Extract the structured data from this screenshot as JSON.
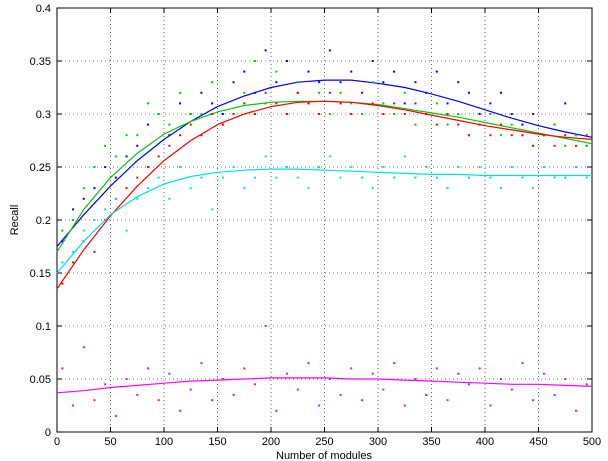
{
  "chart_data": {
    "type": "scatter",
    "title": "",
    "xlabel": "Number of modules",
    "ylabel": "Recall",
    "xlim": [
      0,
      500
    ],
    "ylim": [
      0,
      0.4
    ],
    "xticks": [
      0,
      50,
      100,
      150,
      200,
      250,
      300,
      350,
      400,
      450,
      500
    ],
    "yticks": [
      0,
      0.05,
      0.1,
      0.15,
      0.2,
      0.25,
      0.3,
      0.35,
      0.4
    ],
    "grid": "dotted",
    "legend": "none",
    "series": [
      {
        "color": "#0000ff",
        "fit": {
          "x": [
            0,
            25,
            50,
            75,
            100,
            125,
            150,
            175,
            200,
            225,
            250,
            275,
            300,
            325,
            350,
            375,
            400,
            425,
            450,
            475,
            500
          ],
          "y": [
            0.175,
            0.205,
            0.232,
            0.256,
            0.276,
            0.293,
            0.307,
            0.317,
            0.325,
            0.33,
            0.332,
            0.332,
            0.329,
            0.325,
            0.319,
            0.312,
            0.304,
            0.296,
            0.289,
            0.283,
            0.278
          ]
        },
        "points": {
          "x": [
            5,
            15,
            25,
            35,
            45,
            55,
            65,
            75,
            85,
            95,
            105,
            115,
            125,
            135,
            145,
            155,
            165,
            175,
            185,
            195,
            205,
            215,
            225,
            235,
            245,
            255,
            265,
            275,
            285,
            295,
            305,
            315,
            325,
            335,
            345,
            355,
            365,
            375,
            385,
            395,
            405,
            415,
            425,
            435,
            445,
            455,
            465,
            475,
            485,
            495
          ],
          "y": [
            0.18,
            0.21,
            0.22,
            0.23,
            0.25,
            0.24,
            0.26,
            0.27,
            0.29,
            0.3,
            0.28,
            0.31,
            0.3,
            0.32,
            0.31,
            0.3,
            0.33,
            0.34,
            0.32,
            0.36,
            0.33,
            0.35,
            0.32,
            0.34,
            0.33,
            0.36,
            0.33,
            0.34,
            0.32,
            0.35,
            0.33,
            0.34,
            0.31,
            0.33,
            0.32,
            0.34,
            0.31,
            0.33,
            0.32,
            0.3,
            0.31,
            0.32,
            0.3,
            0.29,
            0.3,
            0.28,
            0.29,
            0.31,
            0.28,
            0.27
          ]
        }
      },
      {
        "color": "#00cc00",
        "fit": {
          "x": [
            0,
            25,
            50,
            75,
            100,
            125,
            150,
            175,
            200,
            225,
            250,
            275,
            300,
            325,
            350,
            375,
            400,
            425,
            450,
            475,
            500
          ],
          "y": [
            0.17,
            0.21,
            0.24,
            0.263,
            0.281,
            0.293,
            0.302,
            0.308,
            0.311,
            0.312,
            0.312,
            0.311,
            0.309,
            0.305,
            0.301,
            0.297,
            0.292,
            0.287,
            0.282,
            0.277,
            0.272
          ]
        },
        "points": {
          "x": [
            5,
            15,
            25,
            35,
            45,
            55,
            65,
            75,
            85,
            95,
            105,
            115,
            125,
            135,
            145,
            155,
            165,
            175,
            185,
            195,
            205,
            215,
            225,
            235,
            245,
            255,
            265,
            275,
            285,
            295,
            305,
            315,
            325,
            335,
            345,
            355,
            365,
            375,
            385,
            395,
            405,
            415,
            425,
            435,
            445,
            455,
            465,
            475,
            485,
            495
          ],
          "y": [
            0.19,
            0.2,
            0.23,
            0.25,
            0.27,
            0.26,
            0.28,
            0.28,
            0.31,
            0.3,
            0.29,
            0.32,
            0.3,
            0.3,
            0.33,
            0.29,
            0.3,
            0.32,
            0.35,
            0.31,
            0.34,
            0.3,
            0.33,
            0.31,
            0.32,
            0.3,
            0.32,
            0.31,
            0.3,
            0.33,
            0.31,
            0.3,
            0.32,
            0.29,
            0.3,
            0.31,
            0.29,
            0.3,
            0.28,
            0.29,
            0.3,
            0.28,
            0.29,
            0.28,
            0.27,
            0.28,
            0.29,
            0.27,
            0.28,
            0.27
          ]
        }
      },
      {
        "color": "#ff0000",
        "fit": {
          "x": [
            0,
            25,
            50,
            75,
            100,
            125,
            150,
            175,
            200,
            225,
            250,
            275,
            300,
            325,
            350,
            375,
            400,
            425,
            450,
            475,
            500
          ],
          "y": [
            0.135,
            0.172,
            0.204,
            0.232,
            0.256,
            0.275,
            0.29,
            0.3,
            0.307,
            0.311,
            0.312,
            0.311,
            0.308,
            0.304,
            0.299,
            0.294,
            0.289,
            0.285,
            0.281,
            0.278,
            0.276
          ]
        },
        "points": {
          "x": [
            5,
            15,
            25,
            35,
            45,
            55,
            65,
            75,
            85,
            95,
            105,
            115,
            125,
            135,
            145,
            155,
            165,
            175,
            185,
            195,
            205,
            215,
            225,
            235,
            245,
            255,
            265,
            275,
            285,
            295,
            305,
            315,
            325,
            335,
            345,
            355,
            365,
            375,
            385,
            395,
            405,
            415,
            425,
            435,
            445,
            455,
            465,
            475,
            485,
            495
          ],
          "y": [
            0.14,
            0.16,
            0.18,
            0.17,
            0.2,
            0.22,
            0.23,
            0.24,
            0.25,
            0.26,
            0.27,
            0.28,
            0.29,
            0.28,
            0.3,
            0.29,
            0.3,
            0.31,
            0.3,
            0.32,
            0.31,
            0.3,
            0.32,
            0.31,
            0.3,
            0.32,
            0.31,
            0.3,
            0.32,
            0.31,
            0.3,
            0.31,
            0.3,
            0.31,
            0.3,
            0.29,
            0.3,
            0.29,
            0.28,
            0.29,
            0.28,
            0.29,
            0.28,
            0.28,
            0.27,
            0.28,
            0.27,
            0.28,
            0.27,
            0.28
          ]
        }
      },
      {
        "color": "#00e0e0",
        "fit": {
          "x": [
            0,
            25,
            50,
            75,
            100,
            125,
            150,
            175,
            200,
            225,
            250,
            275,
            300,
            325,
            350,
            375,
            400,
            425,
            450,
            475,
            500
          ],
          "y": [
            0.15,
            0.18,
            0.205,
            0.222,
            0.234,
            0.241,
            0.245,
            0.247,
            0.248,
            0.248,
            0.247,
            0.246,
            0.245,
            0.244,
            0.243,
            0.243,
            0.242,
            0.242,
            0.242,
            0.242,
            0.242
          ]
        },
        "points": {
          "x": [
            5,
            15,
            25,
            35,
            45,
            55,
            65,
            75,
            85,
            95,
            105,
            115,
            125,
            135,
            145,
            155,
            165,
            175,
            185,
            195,
            205,
            215,
            225,
            235,
            245,
            255,
            265,
            275,
            285,
            295,
            305,
            315,
            325,
            335,
            345,
            355,
            365,
            375,
            385,
            395,
            405,
            415,
            425,
            435,
            445,
            455,
            465,
            475,
            485,
            495
          ],
          "y": [
            0.16,
            0.17,
            0.19,
            0.2,
            0.21,
            0.22,
            0.19,
            0.22,
            0.23,
            0.24,
            0.22,
            0.25,
            0.23,
            0.24,
            0.21,
            0.24,
            0.25,
            0.23,
            0.24,
            0.26,
            0.24,
            0.25,
            0.24,
            0.23,
            0.25,
            0.26,
            0.24,
            0.25,
            0.24,
            0.23,
            0.25,
            0.24,
            0.26,
            0.24,
            0.25,
            0.24,
            0.23,
            0.25,
            0.24,
            0.25,
            0.24,
            0.23,
            0.25,
            0.24,
            0.23,
            0.25,
            0.24,
            0.24,
            0.25,
            0.24
          ]
        }
      },
      {
        "color": "#ff00ff",
        "fit": {
          "x": [
            0,
            25,
            50,
            75,
            100,
            125,
            150,
            175,
            200,
            225,
            250,
            275,
            300,
            325,
            350,
            375,
            400,
            425,
            450,
            475,
            500
          ],
          "y": [
            0.037,
            0.039,
            0.042,
            0.044,
            0.046,
            0.048,
            0.049,
            0.05,
            0.051,
            0.051,
            0.051,
            0.05,
            0.05,
            0.049,
            0.048,
            0.047,
            0.046,
            0.045,
            0.045,
            0.044,
            0.043
          ]
        },
        "points": {
          "x": [
            5,
            15,
            25,
            35,
            45,
            55,
            65,
            75,
            85,
            95,
            105,
            115,
            125,
            135,
            145,
            155,
            165,
            175,
            185,
            195,
            205,
            215,
            225,
            235,
            245,
            255,
            265,
            275,
            285,
            295,
            305,
            315,
            325,
            335,
            345,
            355,
            365,
            375,
            385,
            395,
            405,
            415,
            425,
            435,
            445,
            455,
            465,
            475,
            485,
            495
          ],
          "y": [
            0.06,
            0.025,
            0.08,
            0.03,
            0.045,
            0.015,
            0.05,
            0.035,
            0.06,
            0.03,
            0.055,
            0.02,
            0.04,
            0.065,
            0.03,
            0.05,
            0.035,
            0.06,
            0.045,
            0.1,
            0.02,
            0.055,
            0.04,
            0.065,
            0.025,
            0.05,
            0.035,
            0.06,
            0.03,
            0.055,
            0.04,
            0.065,
            0.025,
            0.05,
            0.035,
            0.06,
            0.03,
            0.055,
            0.045,
            0.06,
            0.025,
            0.05,
            0.04,
            0.065,
            0.03,
            0.055,
            0.035,
            0.05,
            0.02,
            0.045
          ]
        }
      }
    ]
  }
}
